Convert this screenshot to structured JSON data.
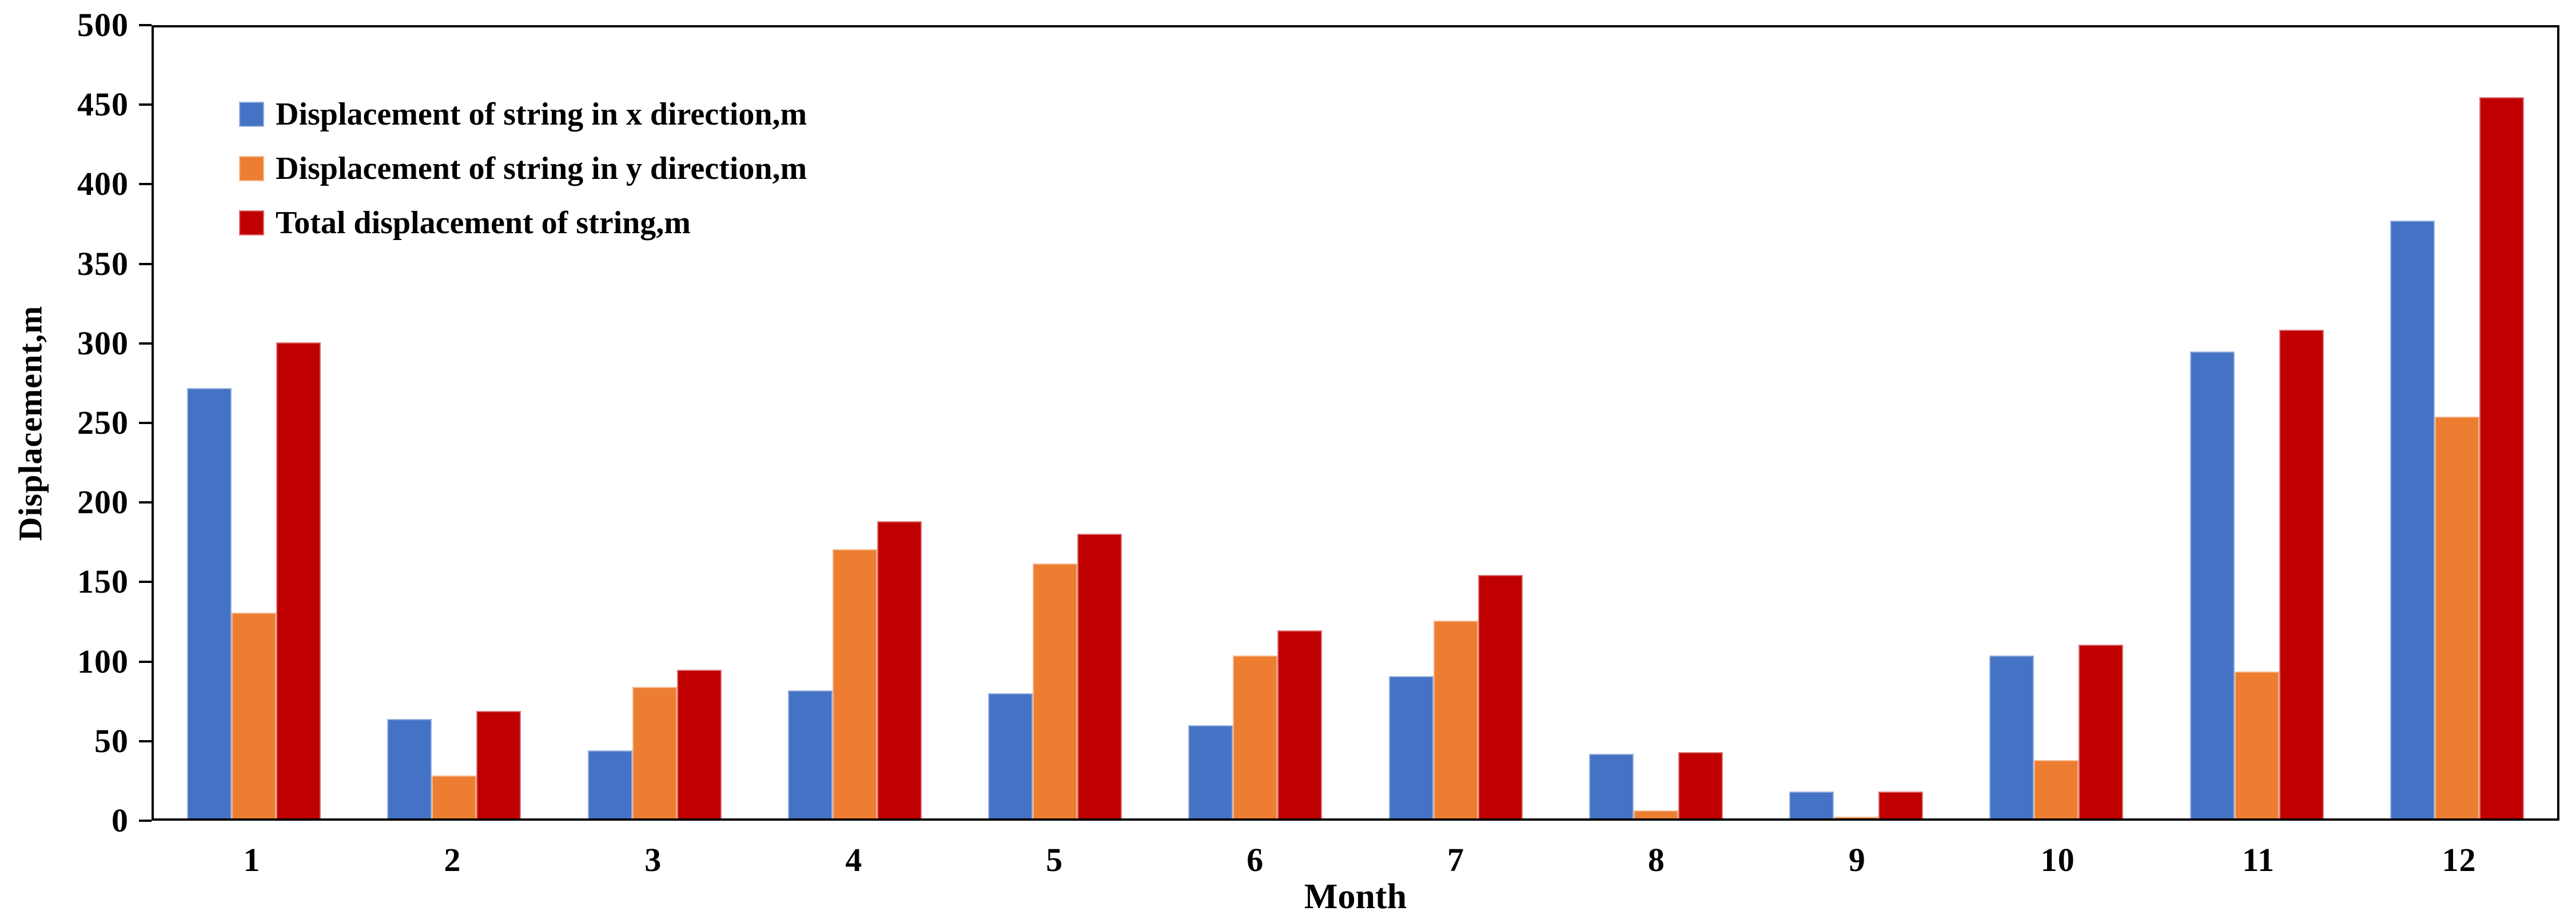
{
  "page": {
    "background": "#ffffff",
    "text_color": "#000000",
    "axis_color": "#000000"
  },
  "chart_data": {
    "type": "bar",
    "title": "",
    "xlabel": "Month",
    "ylabel": "Displacement,m",
    "categories": [
      "1",
      "2",
      "3",
      "4",
      "5",
      "6",
      "7",
      "8",
      "9",
      "10",
      "11",
      "12"
    ],
    "series": [
      {
        "name": "Displacement of string in x direction,m",
        "color": "#4472C4",
        "values": [
          272,
          63,
          43,
          81,
          79,
          59,
          90,
          41,
          17,
          103,
          295,
          378
        ]
      },
      {
        "name": "Displacement of string in y direction,m",
        "color": "#ED7D31",
        "values": [
          130,
          27,
          83,
          170,
          161,
          103,
          125,
          5,
          1,
          37,
          93,
          254
        ]
      },
      {
        "name": "Total displacement of string,m",
        "color": "#C00000",
        "values": [
          301,
          68,
          94,
          188,
          180,
          119,
          154,
          42,
          17,
          110,
          309,
          456
        ]
      }
    ],
    "ylim": [
      0,
      500
    ],
    "ytick_step": 50,
    "yticks": [
      0,
      50,
      100,
      150,
      200,
      250,
      300,
      350,
      400,
      450,
      500
    ],
    "legend_position": "top-left",
    "grid": false
  }
}
